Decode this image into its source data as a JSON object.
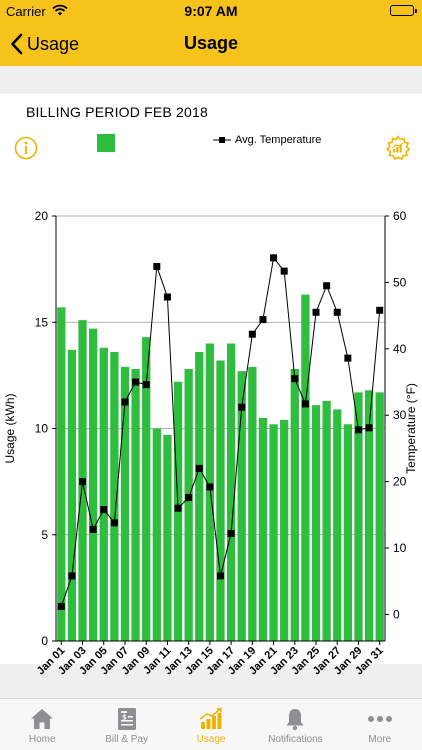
{
  "status_bar": {
    "carrier": "Carrier",
    "time": "9:07 AM"
  },
  "nav": {
    "back_label": "Usage",
    "title": "Usage"
  },
  "billing_period": "BILLING PERIOD FEB 2018",
  "legend": {
    "usage_label": "",
    "temperature_label": "Avg. Temperature"
  },
  "colors": {
    "accent": "#f6c21c",
    "bar": "#2ebd3f",
    "line": "#000000",
    "active_tab": "#f0b400",
    "inactive_tab": "#8e8e93"
  },
  "tabs": [
    {
      "label": "Home",
      "icon": "home-icon",
      "active": false
    },
    {
      "label": "Bill & Pay",
      "icon": "bill-icon",
      "active": false
    },
    {
      "label": "Usage",
      "icon": "usage-chart-icon",
      "active": true
    },
    {
      "label": "Notifications",
      "icon": "bell-icon",
      "active": false
    },
    {
      "label": "More",
      "icon": "more-icon",
      "active": false
    }
  ],
  "chart_data": {
    "type": "bar",
    "categories": [
      "Jan 01",
      "Jan 02",
      "Jan 03",
      "Jan 04",
      "Jan 05",
      "Jan 06",
      "Jan 07",
      "Jan 08",
      "Jan 09",
      "Jan 10",
      "Jan 11",
      "Jan 12",
      "Jan 13",
      "Jan 14",
      "Jan 15",
      "Jan 16",
      "Jan 17",
      "Jan 18",
      "Jan 19",
      "Jan 20",
      "Jan 21",
      "Jan 22",
      "Jan 23",
      "Jan 24",
      "Jan 25",
      "Jan 26",
      "Jan 27",
      "Jan 28",
      "Jan 29",
      "Jan 30",
      "Jan 31"
    ],
    "tick_labels": [
      "Jan 01",
      "Jan 03",
      "Jan 05",
      "Jan 07",
      "Jan 09",
      "Jan 11",
      "Jan 13",
      "Jan 15",
      "Jan 17",
      "Jan 19",
      "Jan 21",
      "Jan 23",
      "Jan 25",
      "Jan 27",
      "Jan 29",
      "Jan 31"
    ],
    "series": [
      {
        "values": [
          15.7,
          13.7,
          15.1,
          14.7,
          13.8,
          13.6,
          12.9,
          12.8,
          14.3,
          10.0,
          9.7,
          12.2,
          12.8,
          13.6,
          14.0,
          13.2,
          14.0,
          12.7,
          12.9,
          10.5,
          10.2,
          10.4,
          12.8,
          16.3,
          11.1,
          11.3,
          10.9,
          10.2,
          11.7,
          11.8,
          11.7
        ]
      },
      {
        "name": "Avg. Temperature",
        "axis": "right",
        "type": "line",
        "values": [
          1.2,
          5.8,
          20.0,
          12.8,
          15.8,
          13.8,
          32.0,
          35.0,
          34.6,
          52.4,
          47.8,
          16.0,
          17.6,
          22.0,
          19.2,
          5.8,
          12.2,
          31.2,
          42.2,
          44.4,
          53.7,
          51.7,
          35.5,
          31.7,
          45.5,
          49.5,
          45.5,
          38.6,
          27.8,
          28.1,
          45.8
        ]
      }
    ],
    "ylabel": "Usage (kWh)",
    "ylabel_right": "Temperature (°F)",
    "ylim": [
      0,
      20
    ],
    "ylim_right": [
      -4,
      60
    ],
    "yticks": [
      0,
      5,
      10,
      15,
      20
    ],
    "yticks_right": [
      0,
      10,
      20,
      30,
      40,
      50,
      60
    ],
    "grid": true
  }
}
